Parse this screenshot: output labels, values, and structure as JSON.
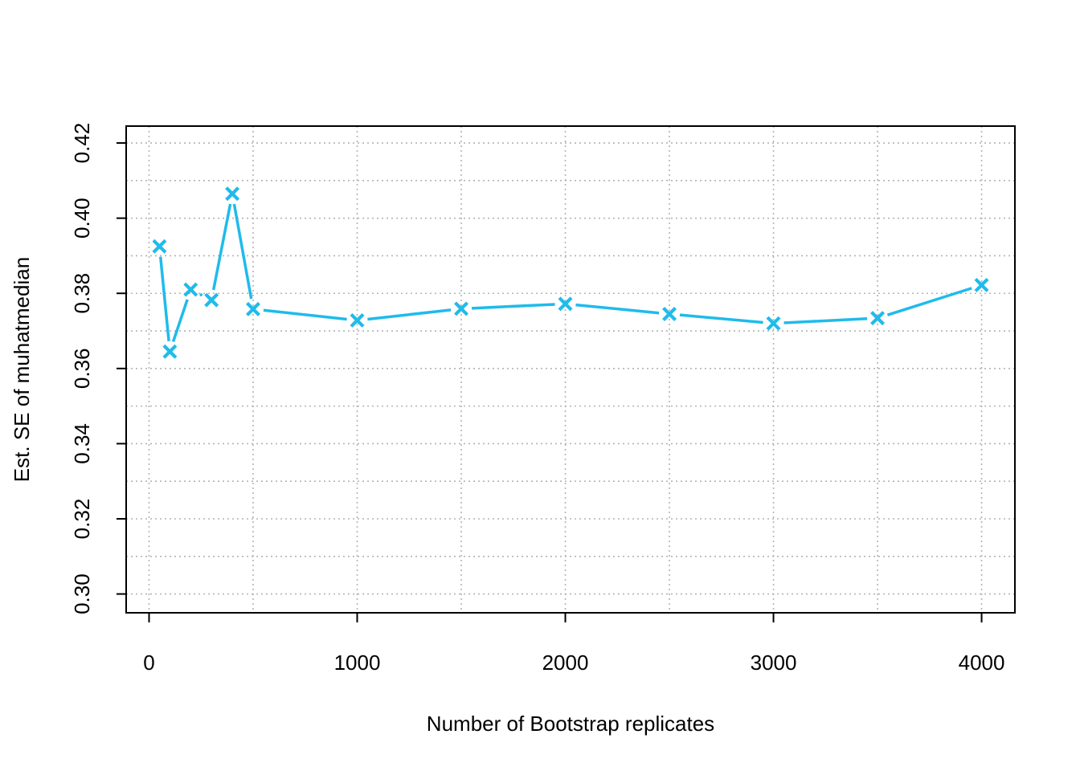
{
  "chart_data": {
    "type": "line",
    "title": "",
    "xlabel": "Number of Bootstrap replicates",
    "ylabel": "Est. SE of muhatmedian",
    "x": [
      50,
      100,
      200,
      300,
      400,
      500,
      1000,
      1500,
      2000,
      2500,
      3000,
      3500,
      4000
    ],
    "series": [
      {
        "values": [
          0.3925,
          0.3645,
          0.381,
          0.3782,
          0.4065,
          0.3758,
          0.3728,
          0.3759,
          0.3772,
          0.3745,
          0.372,
          0.3734,
          0.3822
        ]
      }
    ],
    "xlim": [
      -110,
      4160
    ],
    "ylim": [
      0.295,
      0.4245
    ],
    "xticks": [
      0,
      1000,
      2000,
      3000,
      4000
    ],
    "xtick_labels": [
      "0",
      "1000",
      "2000",
      "3000",
      "4000"
    ],
    "yticks": [
      0.3,
      0.32,
      0.34,
      0.36,
      0.38,
      0.4,
      0.42
    ],
    "ytick_labels": [
      "0.30",
      "0.32",
      "0.34",
      "0.36",
      "0.38",
      "0.40",
      "0.42"
    ],
    "x_gridlines": [
      0,
      500,
      1000,
      1500,
      2000,
      2500,
      3000,
      3500,
      4000
    ],
    "y_gridlines": [
      0.3,
      0.31,
      0.32,
      0.33,
      0.34,
      0.35,
      0.36,
      0.37,
      0.38,
      0.39,
      0.4,
      0.41,
      0.42
    ],
    "grid": true,
    "marker": "x",
    "colors": {
      "series": "#1FBBEB",
      "grid": "#b4b4b4",
      "axis": "#000000"
    }
  }
}
